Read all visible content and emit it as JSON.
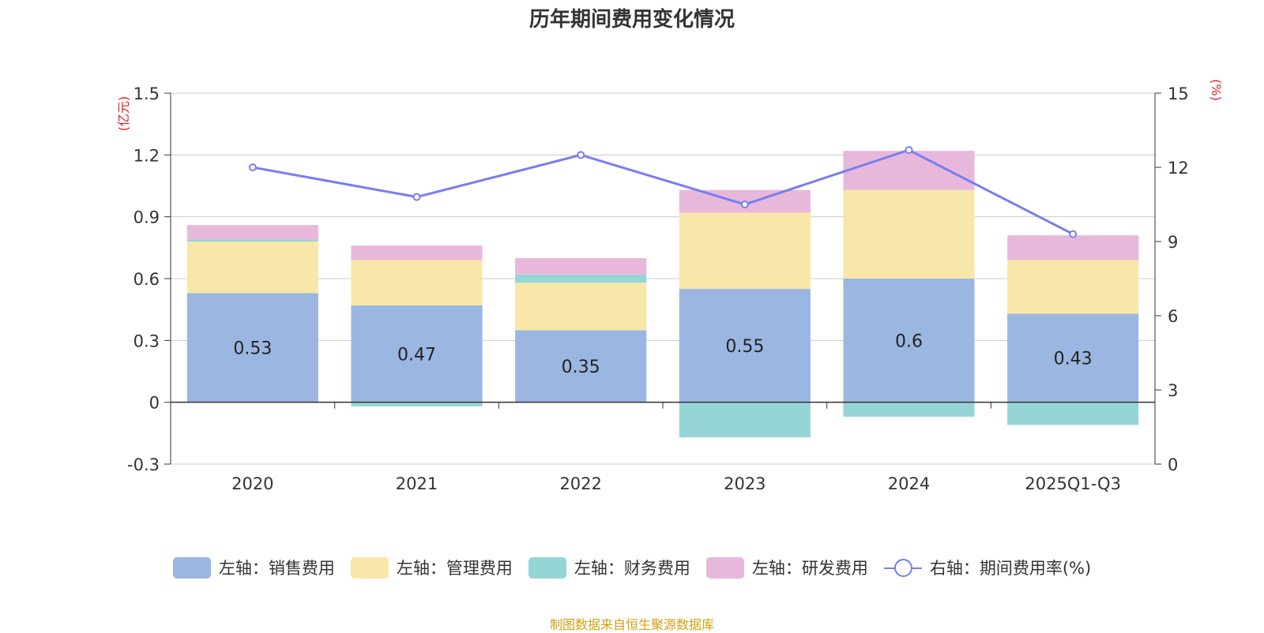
{
  "chart_data": {
    "type": "bar",
    "title": "历年期间费用变化情况",
    "categories": [
      "2020",
      "2021",
      "2022",
      "2023",
      "2024",
      "2025Q1-Q3"
    ],
    "left_axis": {
      "label": "(亿元)",
      "ylim": [
        -0.3,
        1.5
      ],
      "ticks": [
        "-0.3",
        "0",
        "0.3",
        "0.6",
        "0.9",
        "1.2",
        "1.5"
      ]
    },
    "right_axis": {
      "label": "(%)",
      "ylim": [
        0,
        15
      ],
      "ticks": [
        "0",
        "3",
        "6",
        "9",
        "12",
        "15"
      ]
    },
    "series": [
      {
        "name": "左轴：销售费用",
        "kind": "bar",
        "color": "#9bb7e1",
        "values": [
          0.53,
          0.47,
          0.35,
          0.55,
          0.6,
          0.43
        ],
        "labels": [
          "0.53",
          "0.47",
          "0.35",
          "0.55",
          "0.6",
          "0.43"
        ]
      },
      {
        "name": "左轴：管理费用",
        "kind": "bar",
        "color": "#f8e7a8",
        "values": [
          0.25,
          0.22,
          0.23,
          0.37,
          0.43,
          0.26
        ]
      },
      {
        "name": "左轴：财务费用",
        "kind": "bar",
        "color": "#96d5d6",
        "values": [
          0.01,
          -0.02,
          0.04,
          -0.17,
          -0.07,
          -0.11
        ]
      },
      {
        "name": "左轴：研发费用",
        "kind": "bar",
        "color": "#e8b8da",
        "values": [
          0.07,
          0.07,
          0.08,
          0.11,
          0.19,
          0.12
        ]
      },
      {
        "name": "右轴：期间费用率(%)",
        "kind": "line",
        "color": "#777ef2",
        "values": [
          12.0,
          10.8,
          12.5,
          10.5,
          12.7,
          9.3
        ]
      }
    ],
    "grid": true,
    "legend_position": "bottom"
  },
  "source_note": "制图数据来自恒生聚源数据库"
}
